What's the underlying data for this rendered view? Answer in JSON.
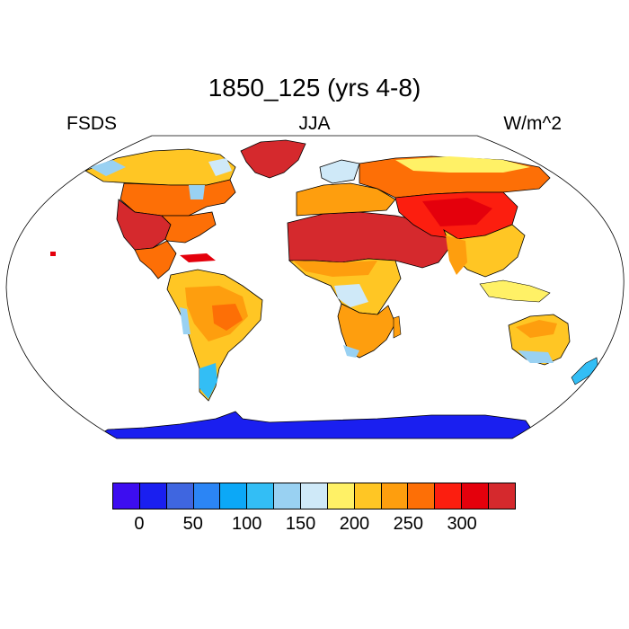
{
  "header": {
    "title": "1850_125 (yrs 4-8)",
    "left": "FSDS",
    "center": "JJA",
    "right": "W/m^2"
  },
  "colorbar": {
    "colors": [
      "#3d0df0",
      "#1a1ff0",
      "#3f66e0",
      "#2b85f5",
      "#0ca8f7",
      "#33bef5",
      "#99d1f2",
      "#cfe9f8",
      "#fff166",
      "#ffc624",
      "#fe9e0e",
      "#fd6f06",
      "#fc1e0f",
      "#e4000c",
      "#d5292d"
    ],
    "tick_labels": [
      "0",
      "50",
      "100",
      "150",
      "200",
      "250",
      "300"
    ],
    "tick_box_index": [
      1,
      3,
      5,
      7,
      9,
      11,
      13
    ]
  },
  "map_regions": {
    "antarctica": "#1a1ff0",
    "greenland": "#d5292d",
    "north_africa_arabia": "#d5292d",
    "central_asia": "#fc1e0f",
    "siberia": "#fd6f06",
    "usa_west": "#d5292d",
    "canada": "#fe9e0e",
    "arctic_canada": "#ffc624",
    "amazon": "#ffc624",
    "southern_africa": "#fe9e0e",
    "australia": "#ffc624",
    "patagonia": "#33bef5"
  }
}
